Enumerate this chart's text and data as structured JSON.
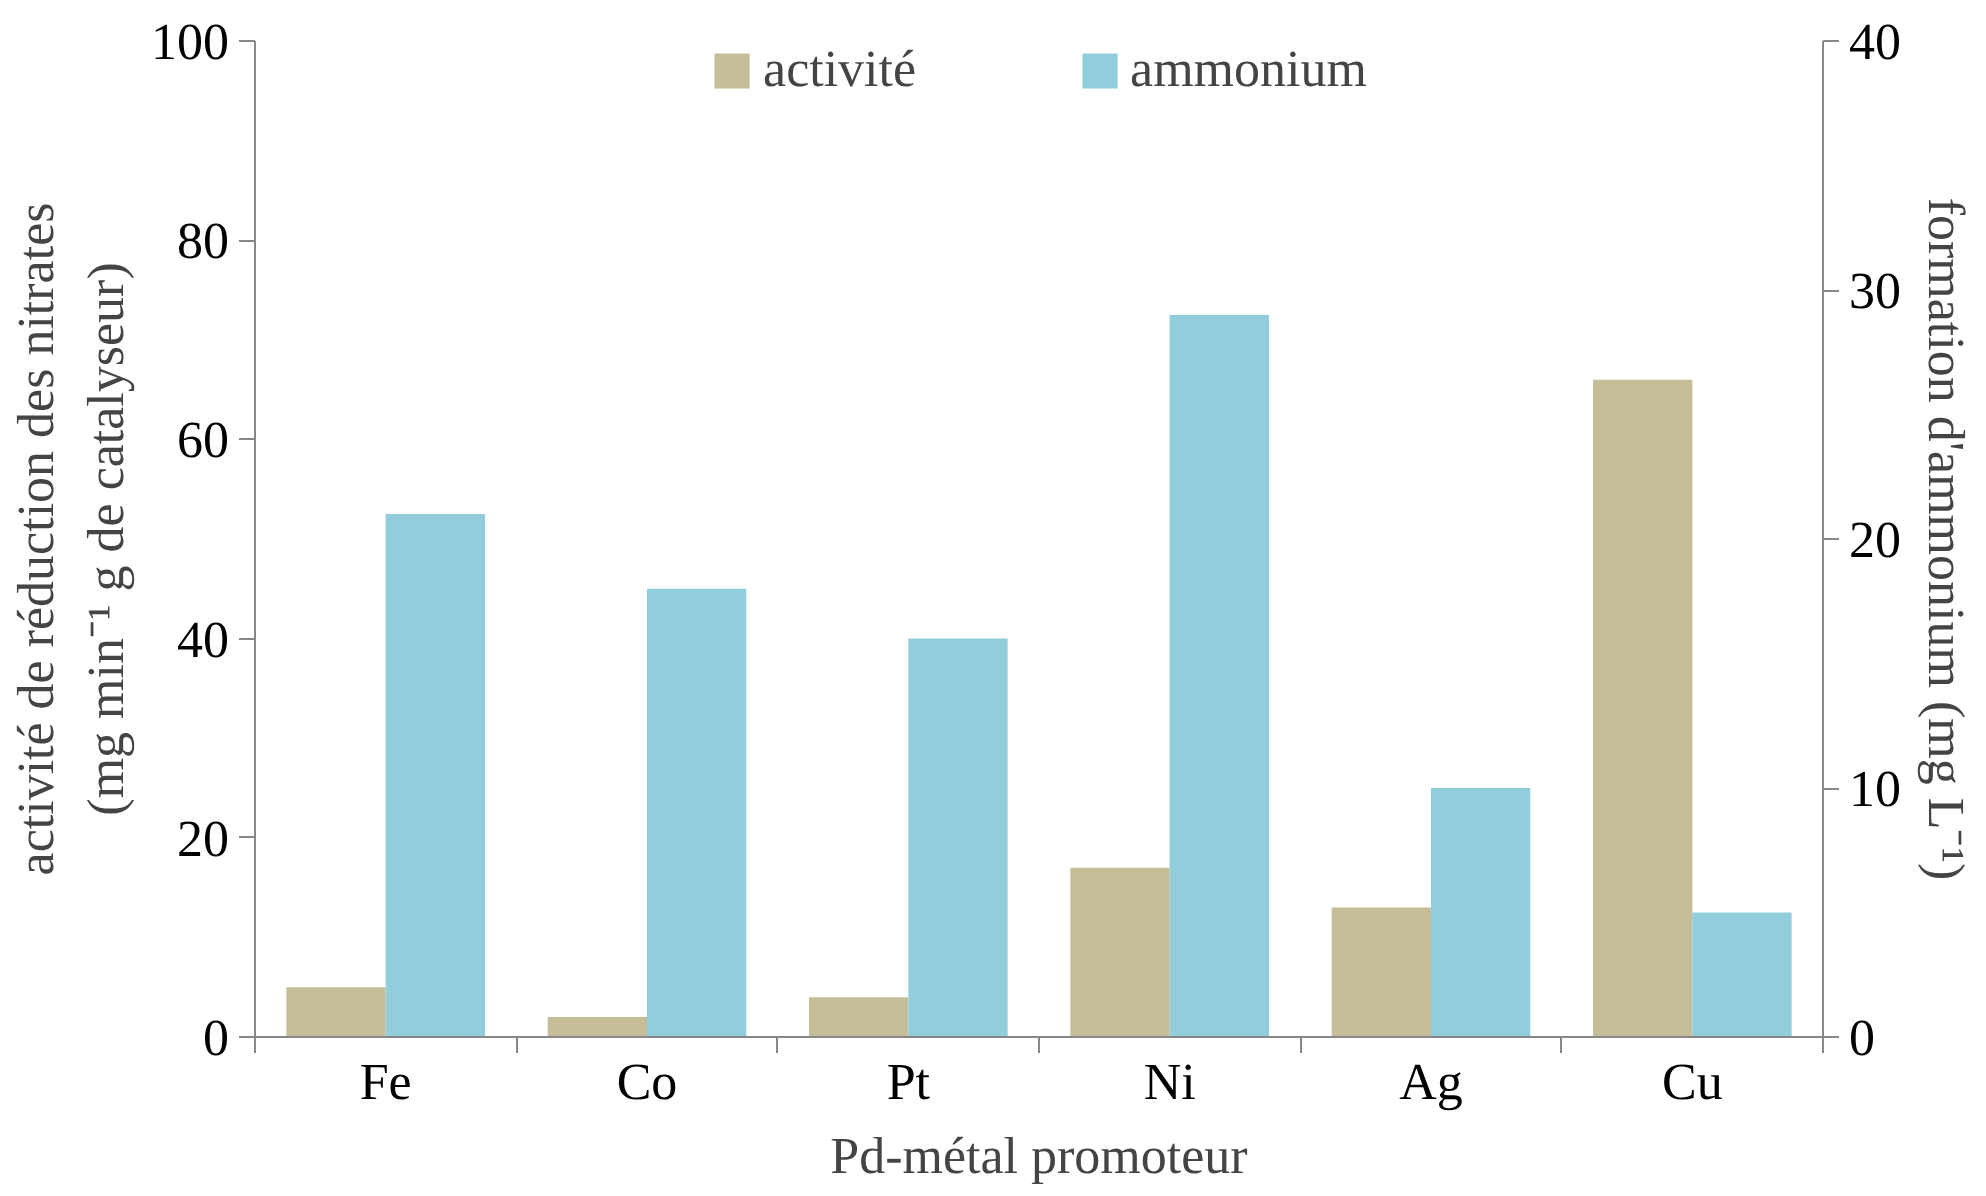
{
  "chart_data": {
    "type": "bar",
    "categories": [
      "Fe",
      "Co",
      "Pt",
      "Ni",
      "Ag",
      "Cu"
    ],
    "xlabel": "Pd-métal promoteur",
    "ylabel": "activité de réduction des nitrates\n(mg min⁻¹ g de catalyseur)",
    "y2label": "formation d'ammonium (mg L⁻¹)",
    "series": [
      {
        "name": "activité",
        "color": "#c4bd97",
        "values": [
          5,
          2,
          4,
          17,
          13,
          66
        ]
      },
      {
        "name": "ammonium",
        "color": "#92cddc",
        "values": [
          21,
          18,
          16,
          29,
          10,
          5
        ],
        "axis": "y2"
      }
    ],
    "ylim": [
      0,
      100
    ],
    "yticks": [
      0,
      20,
      40,
      60,
      80,
      100
    ],
    "y2lim": [
      0,
      40
    ],
    "y2ticks": [
      0,
      10,
      20,
      30,
      40
    ],
    "legend": "top",
    "grid": false
  }
}
